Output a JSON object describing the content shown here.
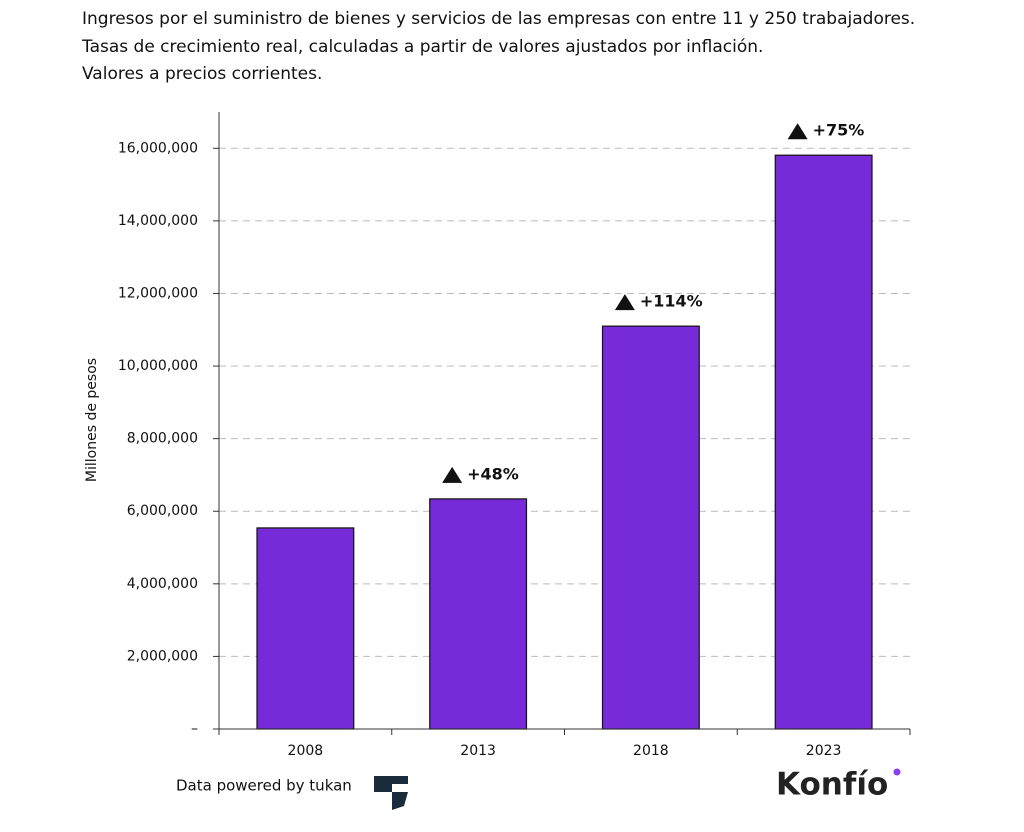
{
  "chart_data": {
    "type": "bar",
    "title": "Ingresos por el suministro de bienes y servicios de las empresas con entre 11 y 250 trabajadores.",
    "subtitle": "Tasas de crecimiento real, calculadas a partir de valores ajustados por inflación.",
    "note": "Valores a precios corrientes.",
    "y_label": "Millones de pesos",
    "categories": [
      "2008",
      "2013",
      "2018",
      "2023"
    ],
    "values": [
      5540000,
      6340000,
      11100000,
      15810000
    ],
    "growth_labels": [
      null,
      "+48%",
      "+114%",
      "+75%"
    ],
    "color": "#772bd8",
    "ylim": [
      0,
      17000000
    ],
    "yticks": [
      {
        "value": 0,
        "label": "–"
      },
      {
        "value": 2000000,
        "label": "2,000,000"
      },
      {
        "value": 4000000,
        "label": "4,000,000"
      },
      {
        "value": 6000000,
        "label": "6,000,000"
      },
      {
        "value": 8000000,
        "label": "8,000,000"
      },
      {
        "value": 10000000,
        "label": "10,000,000"
      },
      {
        "value": 12000000,
        "label": "12,000,000"
      },
      {
        "value": 14000000,
        "label": "14,000,000"
      },
      {
        "value": 16000000,
        "label": "16,000,000"
      }
    ],
    "grid": true,
    "source": "Data powered by tukan",
    "brand": "Konfío"
  }
}
